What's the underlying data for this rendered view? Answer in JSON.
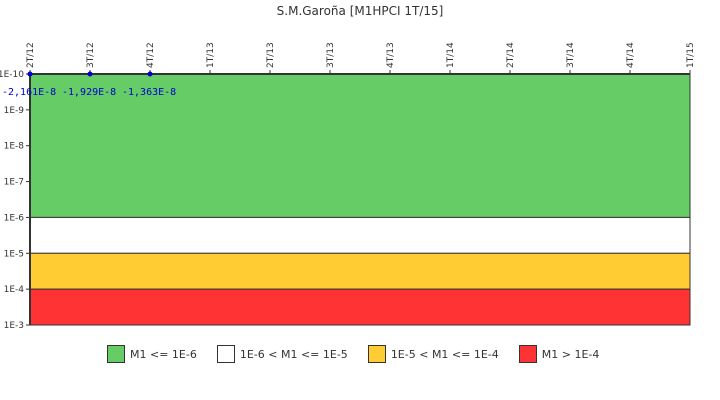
{
  "chart_data": {
    "type": "area",
    "title": "S.M.Garoña [M1HPCI 1T/15]",
    "x_categories": [
      "2T/12",
      "3T/12",
      "4T/12",
      "1T/13",
      "2T/13",
      "3T/13",
      "4T/13",
      "1T/14",
      "2T/14",
      "3T/14",
      "4T/14",
      "1T/15"
    ],
    "y_scale": "log",
    "y_ticks": [
      "1E-10",
      "1E-9",
      "1E-8",
      "1E-7",
      "1E-6",
      "1E-5",
      "1E-4",
      "1E-3"
    ],
    "y_reversed": true,
    "ylim": [
      "1E-10",
      "1E-3"
    ],
    "series": [
      {
        "name": "M1",
        "points": [
          {
            "x": "2T/12",
            "value": -2.161e-08,
            "label": "-2,161E-8"
          },
          {
            "x": "3T/12",
            "value": -1.929e-08,
            "label": "-1,929E-8"
          },
          {
            "x": "4T/12",
            "value": -1.363e-08,
            "label": "-1,363E-8"
          }
        ],
        "color": "#0000cc"
      }
    ],
    "bands": [
      {
        "label": "M1 <= 1E-6",
        "from": "1E-10",
        "to": "1E-6",
        "color": "#66cc66"
      },
      {
        "label": "1E-6 < M1 <= 1E-5",
        "from": "1E-6",
        "to": "1E-5",
        "color": "#ffffff"
      },
      {
        "label": "1E-5 < M1 <= 1E-4",
        "from": "1E-5",
        "to": "1E-4",
        "color": "#ffcc33"
      },
      {
        "label": "M1 > 1E-4",
        "from": "1E-4",
        "to": "1E-3",
        "color": "#ff3333"
      }
    ],
    "legend_position": "bottom"
  }
}
